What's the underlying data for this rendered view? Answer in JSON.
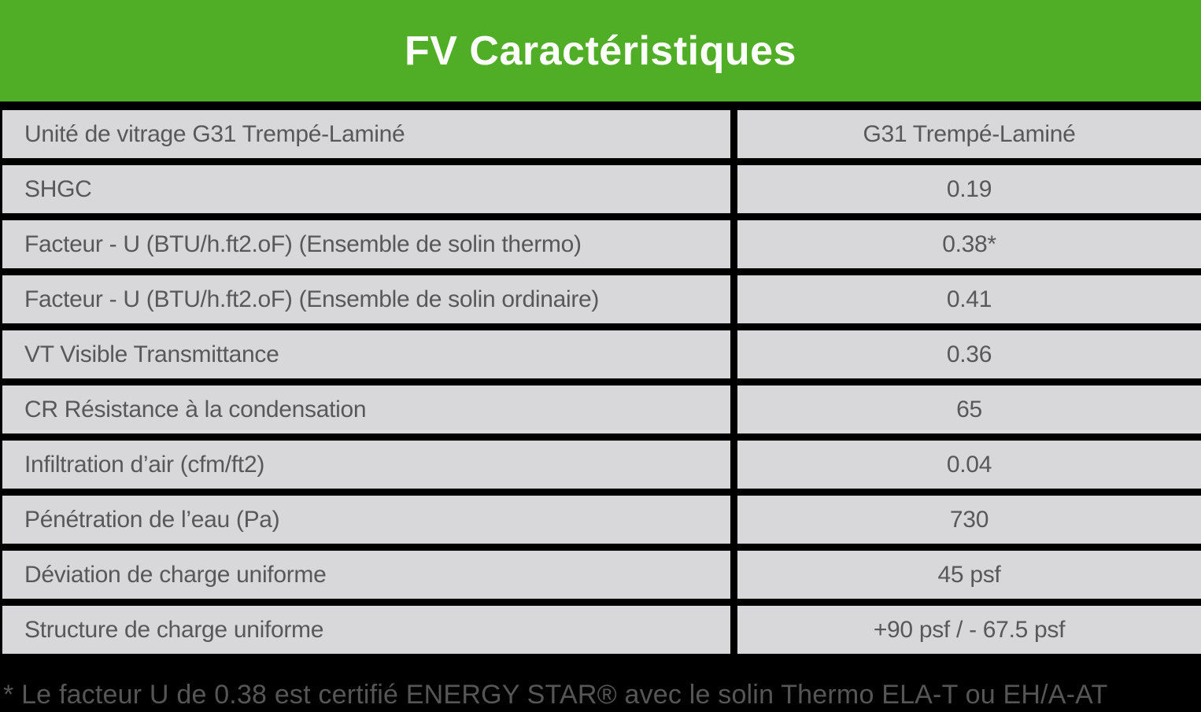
{
  "header": {
    "title": "FV Caractéristiques"
  },
  "table": {
    "rows": [
      {
        "label": "Unité de vitrage G31 Trempé-Laminé",
        "value": "G31 Trempé-Laminé"
      },
      {
        "label": "SHGC",
        "value": "0.19"
      },
      {
        "label": "Facteur - U (BTU/h.ft2.oF) (Ensemble de solin thermo)",
        "value": "0.38*"
      },
      {
        "label": "Facteur - U (BTU/h.ft2.oF) (Ensemble de solin ordinaire)",
        "value": "0.41"
      },
      {
        "label": "VT Visible Transmittance",
        "value": "0.36"
      },
      {
        "label": "CR Résistance à la condensation",
        "value": "65"
      },
      {
        "label": "Infiltration d’air (cfm/ft2)",
        "value": "0.04"
      },
      {
        "label": "Pénétration de l’eau (Pa)",
        "value": "730"
      },
      {
        "label": "Déviation de charge uniforme",
        "value": "45 psf"
      },
      {
        "label": "Structure de charge uniforme",
        "value": "+90 psf / - 67.5 psf"
      }
    ]
  },
  "footnote": {
    "text": "* Le facteur U de 0.38 est certifié ENERGY STAR® avec le solin Thermo ELA-T ou EH/A-AT"
  },
  "colors": {
    "green": "#4FAD26",
    "cell-bg": "#D8D8DA",
    "cell-text": "#58585A",
    "page-bg": "#000000",
    "title-text": "#FFFFFF",
    "footnote-text": "#565656"
  }
}
